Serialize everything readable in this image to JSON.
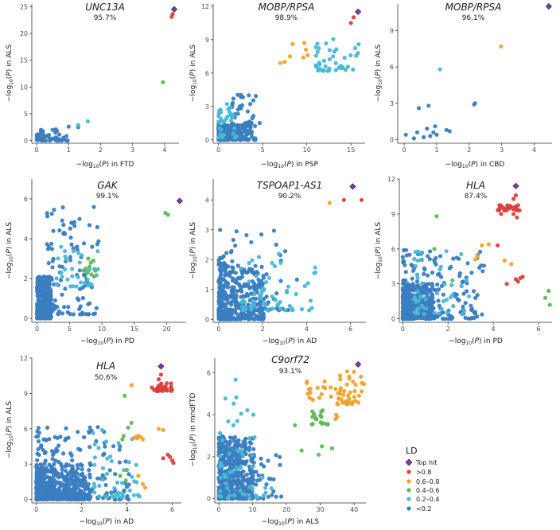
{
  "colors": {
    "top_hit": "#7b3f9e",
    "gt_0_8": "#d9413a",
    "0_6_0_8": "#f0a232",
    "0_4_0_6": "#5fb85a",
    "0_2_0_4": "#49b8d3",
    "lt_0_2": "#3a7dc0"
  },
  "legend": {
    "title": "LD",
    "items": [
      {
        "key": "top_hit",
        "label": "Top hit",
        "shape": "diamond"
      },
      {
        "key": "gt_0_8",
        "label": ">0.8",
        "shape": "circle"
      },
      {
        "key": "0_6_0_8",
        "label": "0.6–0.8",
        "shape": "circle"
      },
      {
        "key": "0_4_0_6",
        "label": "0.4–0.6",
        "shape": "circle"
      },
      {
        "key": "0_2_0_4",
        "label": "0.2–0.4",
        "shape": "circle"
      },
      {
        "key": "lt_0_2",
        "label": "<0.2",
        "shape": "circle"
      }
    ]
  },
  "chart_data": [
    {
      "type": "scatter",
      "title": "UNC13A",
      "subtitle": "95.7%",
      "xlabel_trait": "FTD",
      "ylabel_trait": "ALS",
      "xlim": [
        -0.15,
        4.45
      ],
      "ylim": [
        -0.5,
        25.5
      ],
      "xticks": [
        0,
        1,
        2,
        3,
        4
      ],
      "yticks": [
        0,
        5,
        10,
        15,
        20,
        25
      ],
      "top_hit": [
        4.3,
        24.5
      ],
      "clusters": [
        {
          "key": "gt_0_8",
          "points": [
            [
              4.22,
              23.1
            ],
            [
              4.25,
              23.6
            ]
          ]
        },
        {
          "key": "0_4_0_6",
          "points": [
            [
              3.95,
              10.9
            ]
          ]
        },
        {
          "key": "0_2_0_4",
          "points": [
            [
              1.6,
              3.6
            ],
            [
              1.3,
              2.9
            ]
          ]
        },
        {
          "key": "lt_0_2",
          "seed": 11,
          "n": 50,
          "x": [
            0,
            1.0
          ],
          "y": [
            0,
            2.0
          ]
        },
        {
          "key": "lt_0_2",
          "points": [
            [
              1.0,
              2.6
            ],
            [
              1.3,
              2.5
            ],
            [
              0.5,
              2.0
            ],
            [
              0.6,
              2.1
            ]
          ]
        }
      ]
    },
    {
      "type": "scatter",
      "title": "MOBP/RPSA",
      "subtitle": "98.9%",
      "xlabel_trait": "PSP",
      "ylabel_trait": "ALS",
      "xlim": [
        -0.6,
        16.6
      ],
      "ylim": [
        -0.3,
        12.2
      ],
      "xticks": [
        0,
        5,
        10,
        15
      ],
      "yticks": [
        0,
        3,
        6,
        9,
        12
      ],
      "top_hit": [
        15.8,
        11.5
      ],
      "clusters": [
        {
          "key": "gt_0_8",
          "points": [
            [
              15.0,
              10.5
            ],
            [
              15.3,
              11.0
            ]
          ]
        },
        {
          "key": "0_6_0_8",
          "points": [
            [
              9.7,
              8.7
            ],
            [
              9.9,
              8.1
            ],
            [
              10.1,
              7.6
            ],
            [
              9.6,
              7.4
            ],
            [
              8.1,
              7.5
            ],
            [
              7.5,
              7.0
            ],
            [
              7.0,
              6.9
            ],
            [
              8.4,
              8.6
            ]
          ]
        },
        {
          "key": "0_2_0_4",
          "seed": 21,
          "n": 45,
          "x": [
            11.0,
            16.2
          ],
          "y": [
            6.2,
            9.3
          ]
        },
        {
          "key": "0_2_0_4",
          "seed": 22,
          "n": 35,
          "x": [
            0.0,
            2.2
          ],
          "y": [
            0.2,
            3.3
          ]
        },
        {
          "key": "lt_0_2",
          "seed": 23,
          "n": 170,
          "x": [
            0.0,
            4.2
          ],
          "y": [
            0,
            1.4
          ]
        },
        {
          "key": "lt_0_2",
          "seed": 24,
          "n": 40,
          "x": [
            1.5,
            4.8
          ],
          "y": [
            1.3,
            4.2
          ]
        }
      ]
    },
    {
      "type": "scatter",
      "title": "MOBP/RPSA",
      "subtitle": "96.1%",
      "xlabel_trait": "CBD",
      "ylabel_trait": "ALS",
      "xlim": [
        -0.2,
        4.55
      ],
      "ylim": [
        -0.3,
        11.2
      ],
      "xticks": [
        0,
        1,
        2,
        3,
        4
      ],
      "yticks": [
        0,
        3,
        6,
        9
      ],
      "top_hit": [
        4.45,
        11.0
      ],
      "clusters": [
        {
          "key": "0_6_0_8",
          "points": [
            [
              2.98,
              7.7
            ]
          ]
        },
        {
          "key": "0_2_0_4",
          "points": [
            [
              1.1,
              5.8
            ]
          ]
        },
        {
          "key": "lt_0_2",
          "points": [
            [
              0.05,
              0.4
            ],
            [
              0.3,
              0.1
            ],
            [
              0.4,
              0.6
            ],
            [
              0.45,
              2.6
            ],
            [
              0.6,
              0.2
            ],
            [
              0.7,
              0.9
            ],
            [
              0.75,
              2.8
            ],
            [
              0.8,
              0.3
            ],
            [
              0.9,
              0.6
            ],
            [
              0.95,
              1.1
            ],
            [
              1.0,
              0.4
            ],
            [
              1.3,
              0.8
            ],
            [
              1.4,
              0.7
            ],
            [
              2.15,
              2.9
            ],
            [
              2.18,
              3.0
            ]
          ]
        }
      ]
    },
    {
      "type": "scatter",
      "title": "GAK",
      "subtitle": "99.1%",
      "xlabel_trait": "PD",
      "ylabel_trait": "ALS",
      "xlim": [
        -0.8,
        23.0
      ],
      "ylim": [
        -0.2,
        7.0
      ],
      "xticks": [
        0,
        5,
        10,
        15,
        20
      ],
      "yticks": [
        0,
        2,
        4,
        6
      ],
      "top_hit": [
        22.0,
        5.9
      ],
      "clusters": [
        {
          "key": "0_4_0_6",
          "points": [
            [
              19.8,
              5.3
            ],
            [
              20.2,
              5.2
            ],
            [
              7.8,
              2.3
            ],
            [
              8.1,
              2.6
            ],
            [
              8.4,
              2.2
            ],
            [
              8.7,
              2.9
            ],
            [
              7.5,
              2.5
            ],
            [
              9.0,
              2.4
            ],
            [
              8.3,
              2.8
            ],
            [
              7.9,
              3.0
            ],
            [
              8.8,
              2.1
            ],
            [
              7.2,
              2.4
            ]
          ]
        },
        {
          "key": "0_2_0_4",
          "seed": 41,
          "n": 35,
          "x": [
            3.0,
            9.5
          ],
          "y": [
            1.6,
            3.6
          ]
        },
        {
          "key": "lt_0_2",
          "seed": 42,
          "n": 360,
          "x": [
            0.0,
            2.2
          ],
          "y": [
            0,
            2.1
          ]
        },
        {
          "key": "lt_0_2",
          "seed": 43,
          "n": 110,
          "x": [
            1.5,
            9.5
          ],
          "y": [
            0.2,
            5.8
          ]
        }
      ]
    },
    {
      "type": "scatter",
      "title": "TSPOAP1-AS1",
      "subtitle": "90.2%",
      "xlabel_trait": "AD",
      "ylabel_trait": "ALS",
      "xlim": [
        -0.25,
        6.7
      ],
      "ylim": [
        -0.1,
        4.7
      ],
      "xticks": [
        0,
        2,
        4,
        6
      ],
      "yticks": [
        0,
        1,
        2,
        3,
        4
      ],
      "top_hit": [
        6.1,
        4.45
      ],
      "clusters": [
        {
          "key": "gt_0_8",
          "points": [
            [
              5.7,
              4.0
            ],
            [
              6.5,
              4.0
            ]
          ]
        },
        {
          "key": "0_6_0_8",
          "points": [
            [
              5.05,
              3.9
            ]
          ]
        },
        {
          "key": "0_2_0_4",
          "seed": 51,
          "n": 60,
          "x": [
            1.0,
            4.4
          ],
          "y": [
            0.3,
            2.2
          ]
        },
        {
          "key": "lt_0_2",
          "seed": 52,
          "n": 340,
          "x": [
            0.0,
            2.2
          ],
          "y": [
            0,
            1.9
          ]
        },
        {
          "key": "lt_0_2",
          "seed": 53,
          "n": 80,
          "x": [
            0.0,
            3.6
          ],
          "y": [
            0.3,
            3.2
          ]
        }
      ]
    },
    {
      "type": "scatter",
      "title": "HLA",
      "subtitle": "87.4%",
      "xlabel_trait": "PD",
      "ylabel_trait": "ALS",
      "xlim": [
        -0.15,
        6.6
      ],
      "ylim": [
        -0.3,
        12.0
      ],
      "xticks": [
        0,
        2,
        4,
        6
      ],
      "yticks": [
        0,
        3,
        6,
        9,
        12
      ],
      "top_hit": [
        5.0,
        11.4
      ],
      "clusters": [
        {
          "key": "gt_0_8",
          "seed": 61,
          "n": 30,
          "x": [
            4.2,
            5.2
          ],
          "y": [
            9.3,
            9.8
          ]
        },
        {
          "key": "gt_0_8",
          "points": [
            [
              4.9,
              10.3
            ],
            [
              5.0,
              10.6
            ],
            [
              4.2,
              6.3
            ],
            [
              4.6,
              3.0
            ],
            [
              5.0,
              3.4
            ],
            [
              5.3,
              3.6
            ],
            [
              5.1,
              3.2
            ],
            [
              5.2,
              3.5
            ],
            [
              4.9,
              9.0
            ],
            [
              5.05,
              8.7
            ],
            [
              4.35,
              9.0
            ]
          ]
        },
        {
          "key": "0_6_0_8",
          "points": [
            [
              3.3,
              5.4
            ],
            [
              3.2,
              5.1
            ],
            [
              3.5,
              6.3
            ],
            [
              3.8,
              6.4
            ],
            [
              4.5,
              5.0
            ],
            [
              4.8,
              4.7
            ]
          ]
        },
        {
          "key": "0_4_0_6",
          "points": [
            [
              1.5,
              8.8
            ],
            [
              3.3,
              5.2
            ],
            [
              6.45,
              2.4
            ],
            [
              6.3,
              1.8
            ],
            [
              6.5,
              1.2
            ],
            [
              2.2,
              3.3
            ],
            [
              1.4,
              6.0
            ]
          ]
        },
        {
          "key": "0_2_0_4",
          "seed": 62,
          "n": 50,
          "x": [
            0.5,
            3.0
          ],
          "y": [
            0.4,
            6.0
          ]
        },
        {
          "key": "lt_0_2",
          "seed": 63,
          "n": 380,
          "x": [
            0.0,
            1.4
          ],
          "y": [
            0,
            3.0
          ]
        },
        {
          "key": "lt_0_2",
          "seed": 64,
          "n": 200,
          "x": [
            0.0,
            3.6
          ],
          "y": [
            0,
            6.0
          ]
        }
      ]
    },
    {
      "type": "scatter",
      "title": "HLA",
      "subtitle": "50.6%",
      "xlabel_trait": "AD",
      "ylabel_trait": "ALS",
      "xlim": [
        -0.2,
        6.4
      ],
      "ylim": [
        -0.3,
        12.0
      ],
      "xticks": [
        0,
        2,
        4,
        6
      ],
      "yticks": [
        0,
        3,
        6,
        9,
        12
      ],
      "top_hit": [
        5.5,
        11.3
      ],
      "clusters": [
        {
          "key": "gt_0_8",
          "seed": 71,
          "n": 32,
          "x": [
            5.3,
            6.0
          ],
          "y": [
            9.2,
            9.9
          ]
        },
        {
          "key": "gt_0_8",
          "points": [
            [
              5.1,
              9.5
            ],
            [
              5.4,
              10.2
            ],
            [
              5.5,
              10.6
            ],
            [
              5.9,
              3.6
            ],
            [
              6.0,
              3.3
            ],
            [
              5.8,
              3.8
            ],
            [
              6.05,
              3.1
            ],
            [
              5.6,
              3.5
            ],
            [
              5.2,
              9.3
            ]
          ]
        },
        {
          "key": "0_6_0_8",
          "points": [
            [
              4.4,
              5.3
            ],
            [
              4.5,
              5.4
            ],
            [
              4.6,
              5.3
            ],
            [
              4.3,
              5.2
            ],
            [
              4.45,
              5.2
            ],
            [
              5.4,
              6.0
            ],
            [
              5.6,
              5.9
            ],
            [
              4.7,
              1.3
            ],
            [
              4.8,
              1.0
            ],
            [
              4.2,
              9.7
            ],
            [
              4.5,
              2.0
            ],
            [
              4.7,
              5.1
            ]
          ]
        },
        {
          "key": "0_4_0_6",
          "points": [
            [
              3.9,
              8.8
            ],
            [
              4.2,
              6.5
            ],
            [
              4.05,
              6.1
            ],
            [
              3.85,
              5.4
            ],
            [
              3.7,
              2.0
            ],
            [
              4.0,
              2.5
            ],
            [
              3.95,
              1.6
            ],
            [
              3.8,
              5.1
            ]
          ]
        },
        {
          "key": "0_2_0_4",
          "seed": 72,
          "n": 45,
          "x": [
            2.5,
            4.6
          ],
          "y": [
            0.2,
            6.3
          ]
        },
        {
          "key": "lt_0_2",
          "seed": 73,
          "n": 420,
          "x": [
            0.0,
            2.4
          ],
          "y": [
            0,
            3.0
          ]
        },
        {
          "key": "lt_0_2",
          "seed": 74,
          "n": 200,
          "x": [
            0.0,
            4.1
          ],
          "y": [
            0,
            6.2
          ]
        }
      ]
    },
    {
      "type": "scatter",
      "title": "C9orf72",
      "subtitle": "93.1%",
      "xlabel_trait": "ALS",
      "ylabel_trait": "mndFTD",
      "xlim": [
        -1.2,
        43.5
      ],
      "ylim": [
        -0.2,
        6.7
      ],
      "xticks": [
        0,
        10,
        20,
        30,
        40
      ],
      "yticks": [
        0,
        2,
        4,
        6
      ],
      "top_hit": [
        41.2,
        6.4
      ],
      "clusters": [
        {
          "key": "0_6_0_8",
          "seed": 81,
          "n": 45,
          "x": [
            35.0,
            43.0
          ],
          "y": [
            4.5,
            6.1
          ]
        },
        {
          "key": "0_6_0_8",
          "seed": 82,
          "n": 18,
          "x": [
            26.0,
            35.0
          ],
          "y": [
            4.7,
            5.7
          ]
        },
        {
          "key": "0_6_0_8",
          "points": [
            [
              34.5,
              3.8
            ],
            [
              34.7,
              4.0
            ],
            [
              35.0,
              3.9
            ]
          ]
        },
        {
          "key": "0_4_0_6",
          "seed": 83,
          "n": 18,
          "x": [
            27.5,
            32.5
          ],
          "y": [
            3.5,
            4.3
          ]
        },
        {
          "key": "0_4_0_6",
          "points": [
            [
              22.5,
              3.5
            ],
            [
              24.5,
              2.3
            ],
            [
              29.5,
              2.1
            ],
            [
              30.5,
              2.5
            ],
            [
              33.5,
              2.4
            ]
          ]
        },
        {
          "key": "0_2_0_4",
          "seed": 84,
          "n": 55,
          "x": [
            0.0,
            16.0
          ],
          "y": [
            0,
            5.8
          ]
        },
        {
          "key": "lt_0_2",
          "seed": 85,
          "n": 430,
          "x": [
            0.0,
            10.5
          ],
          "y": [
            0,
            3.0
          ]
        },
        {
          "key": "lt_0_2",
          "seed": 86,
          "n": 60,
          "x": [
            4.0,
            19.0
          ],
          "y": [
            0,
            2.2
          ]
        }
      ]
    }
  ]
}
